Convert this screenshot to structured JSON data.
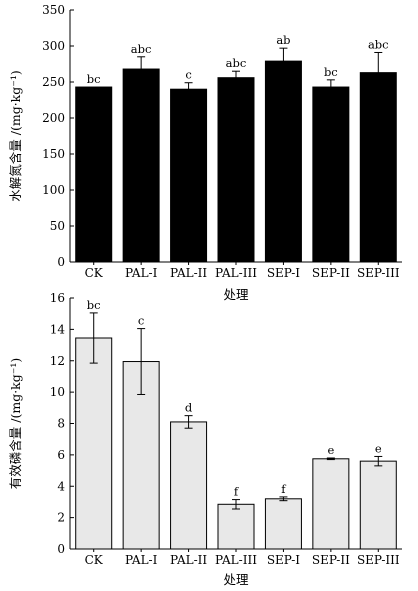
{
  "chart_data": [
    {
      "type": "bar",
      "xlabel": "处理",
      "ylabel": "水解氮含量 /(mg·kg⁻¹)",
      "ylim": [
        0,
        350
      ],
      "yticks": [
        0,
        50,
        100,
        150,
        200,
        250,
        300,
        350
      ],
      "categories": [
        "CK",
        "PAL-I",
        "PAL-II",
        "PAL-III",
        "SEP-I",
        "SEP-II",
        "SEP-III"
      ],
      "values": [
        243,
        268,
        240,
        256,
        279,
        243,
        263
      ],
      "errors": [
        0,
        17,
        9,
        9,
        18,
        10,
        28
      ],
      "significance": [
        "bc",
        "abc",
        "c",
        "abc",
        "ab",
        "bc",
        "abc"
      ],
      "bar_color": "#000000",
      "grid": false
    },
    {
      "type": "bar",
      "xlabel": "处理",
      "ylabel": "有效磷含量 /(mg·kg⁻¹)",
      "ylim": [
        0,
        16
      ],
      "yticks": [
        0,
        2,
        4,
        6,
        8,
        10,
        12,
        14,
        16
      ],
      "categories": [
        "CK",
        "PAL-I",
        "PAL-II",
        "PAL-III",
        "SEP-I",
        "SEP-II",
        "SEP-III"
      ],
      "values": [
        13.45,
        11.95,
        8.1,
        2.85,
        3.2,
        5.75,
        5.6
      ],
      "errors": [
        1.6,
        2.1,
        0.4,
        0.3,
        0.12,
        0.05,
        0.3
      ],
      "significance": [
        "bc",
        "c",
        "d",
        "f",
        "f",
        "e",
        "e"
      ],
      "bar_color": "#e8e8e8",
      "grid": false
    }
  ]
}
